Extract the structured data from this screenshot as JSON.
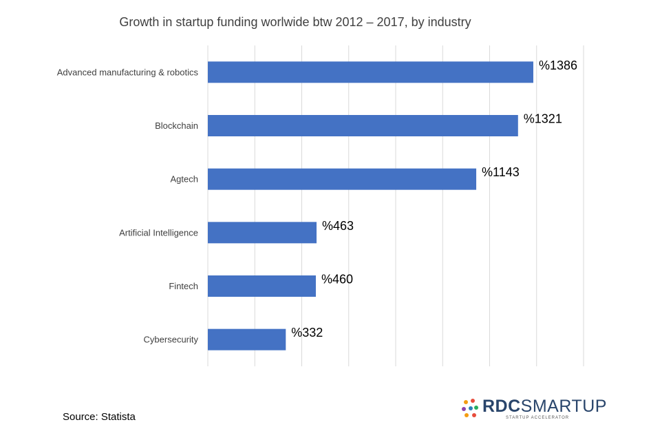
{
  "chart_data": {
    "type": "bar",
    "orientation": "horizontal",
    "title": "Growth in startup funding worlwide btw 2012 – 2017, by industry",
    "categories": [
      "Advanced manufacturing & robotics",
      "Blockchain",
      "Agtech",
      "Artificial Intelligence",
      "Fintech",
      "Cybersecurity"
    ],
    "values": [
      1386,
      1321,
      1143,
      463,
      460,
      332
    ],
    "data_labels": [
      "%1386",
      "%1321",
      "%1143",
      "%463",
      "%460",
      "%332"
    ],
    "xlim": [
      0,
      1600
    ],
    "grid": true,
    "bar_color": "#4472c4",
    "gridline_color": "#d9d9d9"
  },
  "source": "Source: Statista",
  "logo": {
    "brand_bold": "RDC",
    "brand_rest": "SMARTUP",
    "tagline": "STARTUP ACCELERATOR",
    "colors": [
      "#f39c12",
      "#e74c3c",
      "#8e44ad",
      "#2980b9",
      "#27ae60"
    ]
  }
}
